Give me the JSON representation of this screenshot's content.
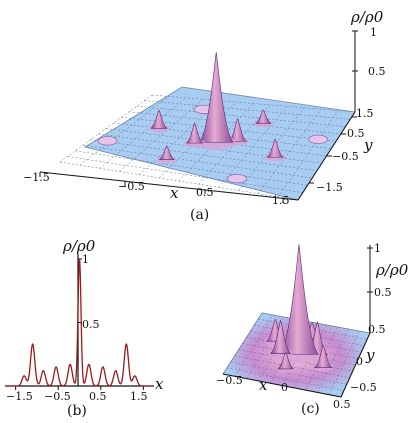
{
  "chart_data": [
    {
      "panel": "(a)",
      "type": "surface",
      "xlabel": "x",
      "ylabel": "y",
      "zlabel": "ρ/ρ0",
      "x_ticks": [
        "−1.5",
        "−0.5",
        "0.5",
        "1.5"
      ],
      "y_ticks": [
        "1.5",
        "0.5",
        "−0.5",
        "−1.5"
      ],
      "z_ticks": [
        "0.5",
        "1"
      ],
      "xlim": [
        -1.8,
        1.8
      ],
      "ylim": [
        -1.8,
        1.8
      ],
      "zlim": [
        0,
        1
      ],
      "peaks": [
        {
          "x": 0.0,
          "y": 0.0,
          "z": 1.0
        },
        {
          "x": 0.3,
          "y": 0.15,
          "z": 0.25
        },
        {
          "x": -0.3,
          "y": -0.15,
          "z": 0.22
        },
        {
          "x": -1.05,
          "y": 0.3,
          "z": 0.2
        },
        {
          "x": 1.05,
          "y": -0.3,
          "z": 0.2
        },
        {
          "x": 0.45,
          "y": 1.0,
          "z": 0.15
        },
        {
          "x": -0.45,
          "y": -1.0,
          "z": 0.15
        },
        {
          "x": -0.7,
          "y": 1.35,
          "z": 0.05
        },
        {
          "x": 1.5,
          "y": 0.6,
          "z": 0.05
        },
        {
          "x": -1.55,
          "y": -0.55,
          "z": 0.05
        },
        {
          "x": 0.75,
          "y": -1.35,
          "z": 0.05
        }
      ]
    },
    {
      "panel": "(b)",
      "type": "line",
      "xlabel": "x",
      "ylabel": "ρ/ρ0",
      "x_ticks": [
        "−1.5",
        "−0.5",
        "0.5",
        "1.5"
      ],
      "y_ticks": [
        "0.5",
        "1"
      ],
      "xlim": [
        -1.75,
        1.75
      ],
      "ylim": [
        0,
        1
      ],
      "peaks": [
        {
          "x": 0.0,
          "y": 1.0
        },
        {
          "x": -1.1,
          "y": 0.33
        },
        {
          "x": 1.1,
          "y": 0.33
        },
        {
          "x": -0.55,
          "y": 0.15
        },
        {
          "x": 0.55,
          "y": 0.15
        },
        {
          "x": -0.22,
          "y": 0.17
        },
        {
          "x": 0.22,
          "y": 0.17
        },
        {
          "x": -0.85,
          "y": 0.12
        },
        {
          "x": 0.85,
          "y": 0.12
        },
        {
          "x": -1.3,
          "y": 0.08
        },
        {
          "x": 1.3,
          "y": 0.08
        }
      ]
    },
    {
      "panel": "(c)",
      "type": "surface",
      "xlabel": "x",
      "ylabel": "y",
      "zlabel": "ρ/ρ0",
      "x_ticks": [
        "−0.5",
        "0",
        "0.5"
      ],
      "y_ticks": [
        "0.5",
        "0",
        "−0.5"
      ],
      "z_ticks": [
        "0.5",
        "1"
      ],
      "xlim": [
        -0.6,
        0.6
      ],
      "ylim": [
        -0.6,
        0.6
      ],
      "zlim": [
        0,
        1
      ],
      "peaks": [
        {
          "x": 0.0,
          "y": 0.0,
          "z": 1.0
        },
        {
          "x": 0.18,
          "y": 0.05,
          "z": 0.3
        },
        {
          "x": -0.18,
          "y": -0.05,
          "z": 0.3
        },
        {
          "x": -0.3,
          "y": 0.15,
          "z": 0.2
        },
        {
          "x": 0.3,
          "y": -0.15,
          "z": 0.2
        },
        {
          "x": 0.05,
          "y": 0.3,
          "z": 0.15
        },
        {
          "x": -0.05,
          "y": -0.3,
          "z": 0.15
        }
      ]
    }
  ],
  "captions": {
    "a": "(a)",
    "b": "(b)",
    "c": "(c)"
  },
  "colors": {
    "base": "#a9ccf2",
    "peak": "#d27fb5",
    "line": "#9a1a1a"
  }
}
